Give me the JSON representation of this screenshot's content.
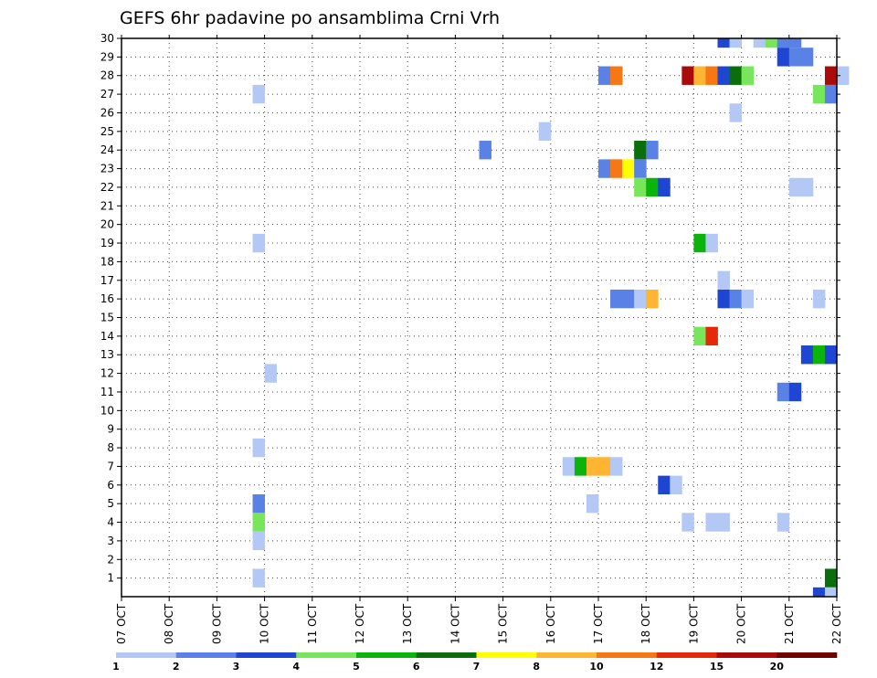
{
  "chart_data": {
    "type": "heatmap",
    "title": "GEFS 6hr padavine po ansamblima Crni Vrh",
    "ylim": [
      0,
      30
    ],
    "y_ticks": [
      "1",
      "2",
      "3",
      "4",
      "5",
      "6",
      "7",
      "8",
      "9",
      "10",
      "11",
      "12",
      "13",
      "14",
      "15",
      "16",
      "17",
      "18",
      "19",
      "20",
      "21",
      "22",
      "23",
      "24",
      "25",
      "26",
      "27",
      "28",
      "29",
      "30"
    ],
    "x_ticks": [
      "07 OCT",
      "08 OCT",
      "09 OCT",
      "10 OCT",
      "11 OCT",
      "12 OCT",
      "13 OCT",
      "14 OCT",
      "15 OCT",
      "16 OCT",
      "17 OCT",
      "18 OCT",
      "19 OCT",
      "20 OCT",
      "21 OCT",
      "22 OCT"
    ],
    "grid": true,
    "legend_position": "bottom",
    "legend": {
      "labels": [
        "1",
        "2",
        "3",
        "4",
        "5",
        "6",
        "7",
        "8",
        "10",
        "12",
        "15",
        "20"
      ],
      "colors": [
        "#b4c8f5",
        "#5a82e6",
        "#1e46d2",
        "#78e65a",
        "#0ab40a",
        "#0a6e0a",
        "#ffff00",
        "#ffb432",
        "#f57814",
        "#e6280a",
        "#aa0a0a",
        "#6e0000"
      ]
    },
    "cells": [
      {
        "m": 30,
        "t": 12.5,
        "c": "#1e46d2"
      },
      {
        "m": 30,
        "t": 12.75,
        "c": "#b4c8f5"
      },
      {
        "m": 30,
        "t": 13.25,
        "c": "#b4c8f5"
      },
      {
        "m": 30,
        "t": 13.5,
        "c": "#78e65a"
      },
      {
        "m": 30,
        "t": 13.75,
        "c": "#5a82e6"
      },
      {
        "m": 30,
        "t": 14.0,
        "c": "#5a82e6"
      },
      {
        "m": 29,
        "t": 13.75,
        "c": "#1e46d2"
      },
      {
        "m": 29,
        "t": 14.0,
        "c": "#5a82e6"
      },
      {
        "m": 29,
        "t": 14.25,
        "c": "#5a82e6"
      },
      {
        "m": 28,
        "t": 10.0,
        "c": "#5a82e6"
      },
      {
        "m": 28,
        "t": 10.25,
        "c": "#f57814"
      },
      {
        "m": 28,
        "t": 11.75,
        "c": "#aa0a0a"
      },
      {
        "m": 28,
        "t": 12.0,
        "c": "#ffb432"
      },
      {
        "m": 28,
        "t": 12.25,
        "c": "#f57814"
      },
      {
        "m": 28,
        "t": 12.5,
        "c": "#1e46d2"
      },
      {
        "m": 28,
        "t": 12.75,
        "c": "#0a6e0a"
      },
      {
        "m": 28,
        "t": 13.0,
        "c": "#78e65a"
      },
      {
        "m": 28,
        "t": 14.75,
        "c": "#aa0a0a"
      },
      {
        "m": 28,
        "t": 15.0,
        "c": "#b4c8f5"
      },
      {
        "m": 27,
        "t": 2.75,
        "c": "#b4c8f5"
      },
      {
        "m": 27,
        "t": 14.5,
        "c": "#78e65a"
      },
      {
        "m": 27,
        "t": 14.75,
        "c": "#5a82e6"
      },
      {
        "m": 26,
        "t": 12.75,
        "c": "#b4c8f5"
      },
      {
        "m": 25,
        "t": 8.75,
        "c": "#b4c8f5"
      },
      {
        "m": 24,
        "t": 7.5,
        "c": "#5a82e6"
      },
      {
        "m": 24,
        "t": 10.75,
        "c": "#0a6e0a"
      },
      {
        "m": 24,
        "t": 11.0,
        "c": "#5a82e6"
      },
      {
        "m": 23,
        "t": 10.0,
        "c": "#5a82e6"
      },
      {
        "m": 23,
        "t": 10.25,
        "c": "#f57814"
      },
      {
        "m": 23,
        "t": 10.5,
        "c": "#ffff00"
      },
      {
        "m": 23,
        "t": 10.75,
        "c": "#5a82e6"
      },
      {
        "m": 22,
        "t": 10.75,
        "c": "#78e65a"
      },
      {
        "m": 22,
        "t": 11.0,
        "c": "#0ab40a"
      },
      {
        "m": 22,
        "t": 11.25,
        "c": "#1e46d2"
      },
      {
        "m": 22,
        "t": 14.0,
        "c": "#b4c8f5"
      },
      {
        "m": 22,
        "t": 14.25,
        "c": "#b4c8f5"
      },
      {
        "m": 19,
        "t": 2.75,
        "c": "#b4c8f5"
      },
      {
        "m": 19,
        "t": 12.0,
        "c": "#0ab40a"
      },
      {
        "m": 19,
        "t": 12.25,
        "c": "#b4c8f5"
      },
      {
        "m": 17,
        "t": 12.5,
        "c": "#b4c8f5"
      },
      {
        "m": 16,
        "t": 10.25,
        "c": "#5a82e6"
      },
      {
        "m": 16,
        "t": 10.5,
        "c": "#5a82e6"
      },
      {
        "m": 16,
        "t": 10.75,
        "c": "#b4c8f5"
      },
      {
        "m": 16,
        "t": 11.0,
        "c": "#ffb432"
      },
      {
        "m": 16,
        "t": 12.5,
        "c": "#1e46d2"
      },
      {
        "m": 16,
        "t": 12.75,
        "c": "#5a82e6"
      },
      {
        "m": 16,
        "t": 13.0,
        "c": "#b4c8f5"
      },
      {
        "m": 16,
        "t": 14.5,
        "c": "#b4c8f5"
      },
      {
        "m": 14,
        "t": 12.0,
        "c": "#78e65a"
      },
      {
        "m": 14,
        "t": 12.25,
        "c": "#e6280a"
      },
      {
        "m": 13,
        "t": 14.25,
        "c": "#1e46d2"
      },
      {
        "m": 13,
        "t": 14.5,
        "c": "#0ab40a"
      },
      {
        "m": 13,
        "t": 14.75,
        "c": "#1e46d2"
      },
      {
        "m": 12,
        "t": 3.0,
        "c": "#b4c8f5"
      },
      {
        "m": 11,
        "t": 13.75,
        "c": "#5a82e6"
      },
      {
        "m": 11,
        "t": 14.0,
        "c": "#1e46d2"
      },
      {
        "m": 8,
        "t": 2.75,
        "c": "#b4c8f5"
      },
      {
        "m": 7,
        "t": 9.25,
        "c": "#b4c8f5"
      },
      {
        "m": 7,
        "t": 9.5,
        "c": "#0ab40a"
      },
      {
        "m": 7,
        "t": 9.75,
        "c": "#ffb432"
      },
      {
        "m": 7,
        "t": 10.0,
        "c": "#ffb432"
      },
      {
        "m": 7,
        "t": 10.25,
        "c": "#b4c8f5"
      },
      {
        "m": 6,
        "t": 11.25,
        "c": "#1e46d2"
      },
      {
        "m": 6,
        "t": 11.5,
        "c": "#b4c8f5"
      },
      {
        "m": 5,
        "t": 2.75,
        "c": "#5a82e6"
      },
      {
        "m": 5,
        "t": 9.75,
        "c": "#b4c8f5"
      },
      {
        "m": 4,
        "t": 2.75,
        "c": "#78e65a"
      },
      {
        "m": 4,
        "t": 11.75,
        "c": "#b4c8f5"
      },
      {
        "m": 4,
        "t": 12.25,
        "c": "#b4c8f5"
      },
      {
        "m": 4,
        "t": 12.5,
        "c": "#b4c8f5"
      },
      {
        "m": 4,
        "t": 13.75,
        "c": "#b4c8f5"
      },
      {
        "m": 3,
        "t": 2.75,
        "c": "#b4c8f5"
      },
      {
        "m": 1,
        "t": 2.75,
        "c": "#b4c8f5"
      },
      {
        "m": 1,
        "t": 14.75,
        "c": "#0a6e0a"
      },
      {
        "m": 0,
        "t": 14.5,
        "c": "#1e46d2"
      },
      {
        "m": 0,
        "t": 14.75,
        "c": "#b4c8f5"
      }
    ]
  }
}
